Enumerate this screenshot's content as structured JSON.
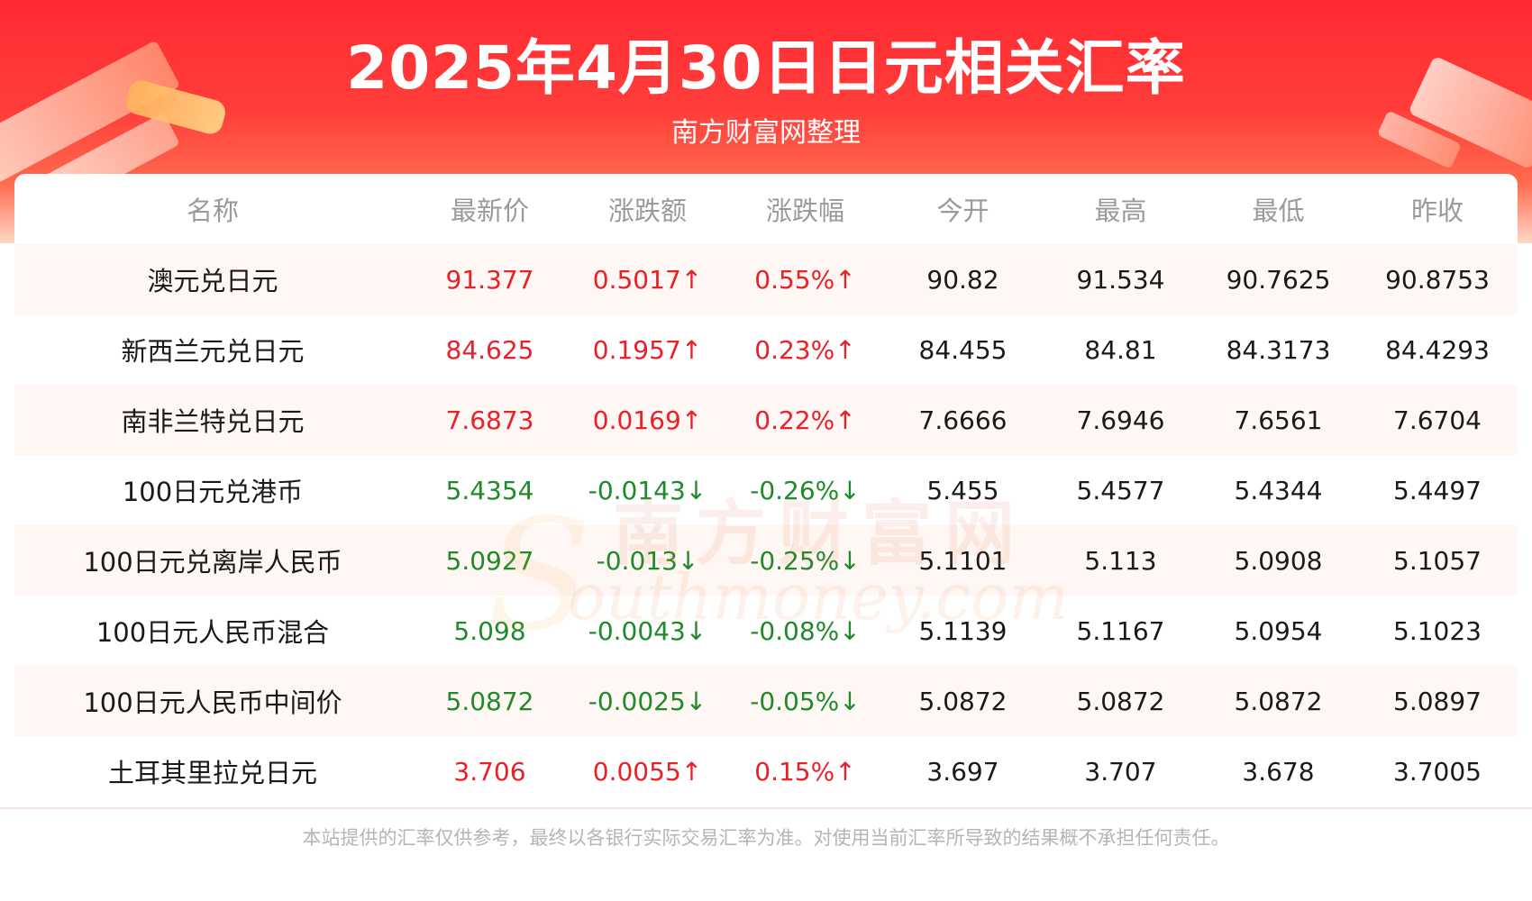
{
  "header": {
    "title": "2025年4月30日日元相关汇率",
    "subtitle": "南方财富网整理"
  },
  "table": {
    "columns": [
      "名称",
      "最新价",
      "涨跌额",
      "涨跌幅",
      "今开",
      "最高",
      "最低",
      "昨收"
    ],
    "rows": [
      {
        "name": "澳元兑日元",
        "latest": "91.377",
        "change": "0.5017↑",
        "pct": "0.55%↑",
        "open": "90.82",
        "high": "91.534",
        "low": "90.7625",
        "prev": "90.8753",
        "direction": "up"
      },
      {
        "name": "新西兰元兑日元",
        "latest": "84.625",
        "change": "0.1957↑",
        "pct": "0.23%↑",
        "open": "84.455",
        "high": "84.81",
        "low": "84.3173",
        "prev": "84.4293",
        "direction": "up"
      },
      {
        "name": "南非兰特兑日元",
        "latest": "7.6873",
        "change": "0.0169↑",
        "pct": "0.22%↑",
        "open": "7.6666",
        "high": "7.6946",
        "low": "7.6561",
        "prev": "7.6704",
        "direction": "up"
      },
      {
        "name": "100日元兑港币",
        "latest": "5.4354",
        "change": "-0.0143↓",
        "pct": "-0.26%↓",
        "open": "5.455",
        "high": "5.4577",
        "low": "5.4344",
        "prev": "5.4497",
        "direction": "down"
      },
      {
        "name": "100日元兑离岸人民币",
        "latest": "5.0927",
        "change": "-0.013↓",
        "pct": "-0.25%↓",
        "open": "5.1101",
        "high": "5.113",
        "low": "5.0908",
        "prev": "5.1057",
        "direction": "down"
      },
      {
        "name": "100日元人民币混合",
        "latest": "5.098",
        "change": "-0.0043↓",
        "pct": "-0.08%↓",
        "open": "5.1139",
        "high": "5.1167",
        "low": "5.0954",
        "prev": "5.1023",
        "direction": "down"
      },
      {
        "name": "100日元人民币中间价",
        "latest": "5.0872",
        "change": "-0.0025↓",
        "pct": "-0.05%↓",
        "open": "5.0872",
        "high": "5.0872",
        "low": "5.0872",
        "prev": "5.0897",
        "direction": "down"
      },
      {
        "name": "土耳其里拉兑日元",
        "latest": "3.706",
        "change": "0.0055↑",
        "pct": "0.15%↑",
        "open": "3.697",
        "high": "3.707",
        "low": "3.678",
        "prev": "3.7005",
        "direction": "up"
      }
    ]
  },
  "watermark": {
    "cn": "南方财富网",
    "en": "outhmoney.com",
    "initial": "S"
  },
  "footer": {
    "disclaimer": "本站提供的汇率仅供参考，最终以各银行实际交易汇率为准。对使用当前汇率所导致的结果概不承担任何责任。"
  },
  "colors": {
    "banner_red": "#ff2a33",
    "up": "#e8202a",
    "down": "#1f8a2a",
    "row_stripe": "#fff7f3"
  }
}
